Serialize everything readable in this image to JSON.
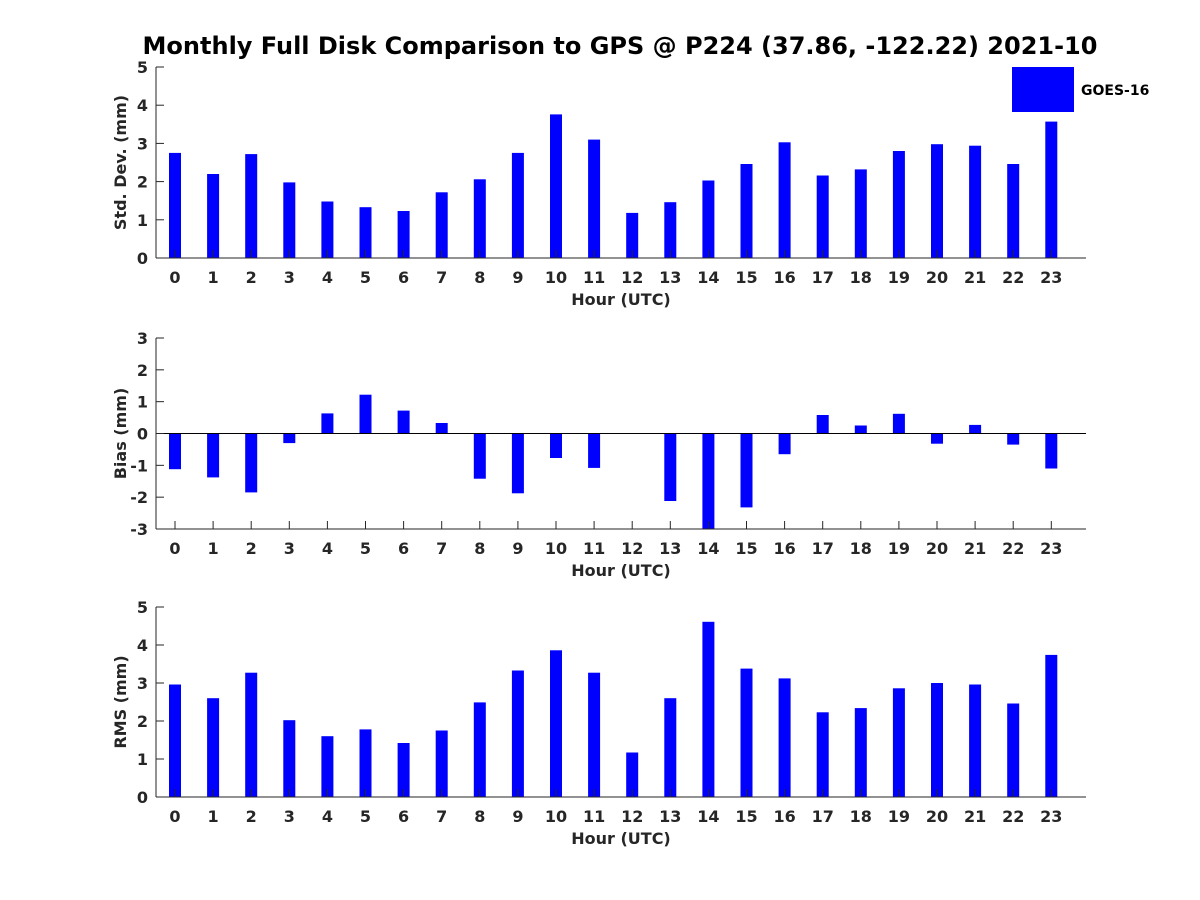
{
  "title": "Monthly Full Disk Comparison to GPS @ P224 (37.86, -122.22) 2021-10",
  "legend": {
    "label": "GOES-16",
    "color": "#0000ff"
  },
  "chart_data": [
    {
      "type": "bar",
      "xlabel": "Hour (UTC)",
      "ylabel": "Std. Dev. (mm)",
      "ylim": [
        0,
        5
      ],
      "yticks": [
        0,
        1,
        2,
        3,
        4,
        5
      ],
      "categories": [
        "0",
        "1",
        "2",
        "3",
        "4",
        "5",
        "6",
        "7",
        "8",
        "9",
        "10",
        "11",
        "12",
        "13",
        "14",
        "15",
        "16",
        "17",
        "18",
        "19",
        "20",
        "21",
        "22",
        "23"
      ],
      "series": [
        {
          "name": "GOES-16",
          "values": [
            2.75,
            2.2,
            2.72,
            1.98,
            1.48,
            1.33,
            1.23,
            1.72,
            2.06,
            2.75,
            3.76,
            3.1,
            1.18,
            1.46,
            2.03,
            2.46,
            3.03,
            2.16,
            2.32,
            2.8,
            2.98,
            2.94,
            2.46,
            3.57
          ]
        }
      ],
      "color": "#0000ff",
      "grid": false,
      "legend_position": "top-right"
    },
    {
      "type": "bar",
      "xlabel": "Hour (UTC)",
      "ylabel": "Bias (mm)",
      "ylim": [
        -3,
        3
      ],
      "yticks": [
        -3,
        -2,
        -1,
        0,
        1,
        2,
        3
      ],
      "categories": [
        "0",
        "1",
        "2",
        "3",
        "4",
        "5",
        "6",
        "7",
        "8",
        "9",
        "10",
        "11",
        "12",
        "13",
        "14",
        "15",
        "16",
        "17",
        "18",
        "19",
        "20",
        "21",
        "22",
        "23"
      ],
      "series": [
        {
          "name": "GOES-16",
          "values": [
            -1.12,
            -1.38,
            -1.85,
            -0.3,
            0.63,
            1.22,
            0.72,
            0.33,
            -1.42,
            -1.88,
            -0.77,
            -1.08,
            0.0,
            -2.12,
            -3.0,
            -2.32,
            -0.65,
            0.58,
            0.25,
            0.62,
            -0.32,
            0.27,
            -0.35,
            -1.1
          ]
        }
      ],
      "color": "#0000ff",
      "grid": false
    },
    {
      "type": "bar",
      "xlabel": "Hour (UTC)",
      "ylabel": "RMS (mm)",
      "ylim": [
        0,
        5
      ],
      "yticks": [
        0,
        1,
        2,
        3,
        4,
        5
      ],
      "categories": [
        "0",
        "1",
        "2",
        "3",
        "4",
        "5",
        "6",
        "7",
        "8",
        "9",
        "10",
        "11",
        "12",
        "13",
        "14",
        "15",
        "16",
        "17",
        "18",
        "19",
        "20",
        "21",
        "22",
        "23"
      ],
      "series": [
        {
          "name": "GOES-16",
          "values": [
            2.96,
            2.6,
            3.27,
            2.02,
            1.6,
            1.78,
            1.42,
            1.75,
            2.49,
            3.33,
            3.86,
            3.27,
            1.17,
            2.6,
            4.61,
            3.38,
            3.12,
            2.23,
            2.34,
            2.86,
            3.0,
            2.96,
            2.46,
            3.74
          ]
        }
      ],
      "color": "#0000ff",
      "grid": false
    }
  ]
}
